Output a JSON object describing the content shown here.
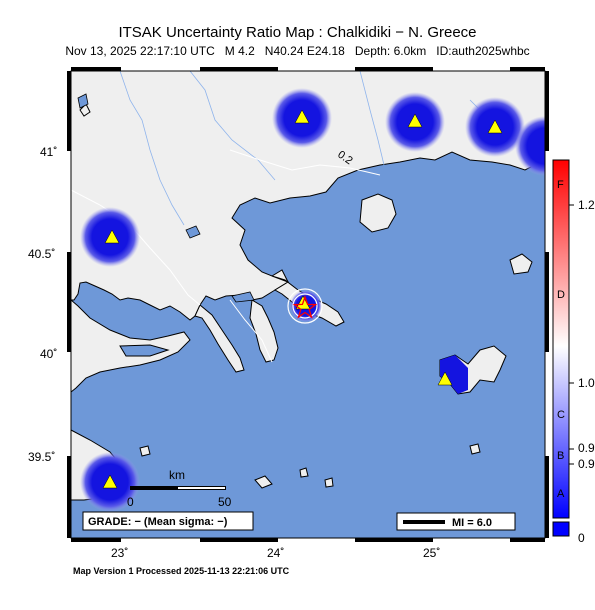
{
  "header": {
    "title": "ITSAK Uncertainty Ratio Map : Chalkidiki − N. Greece",
    "date": "Nov 13, 2025 22:17:10 UTC",
    "magnitude": "M 4.2",
    "location": "N40.24 E24.18",
    "depth": "Depth: 6.0km",
    "event_id": "ID:auth2025whbc"
  },
  "map": {
    "lon_labels": [
      "23˚",
      "24˚",
      "25˚"
    ],
    "lat_labels": [
      "41˚",
      "40.5˚",
      "40˚",
      "39.5˚"
    ],
    "contour_label": "0.2",
    "colors": {
      "sea": "#6e98d8",
      "land": "#efefef",
      "border": "#000000",
      "blob": "#1010d8",
      "station": "#ffff00",
      "epicenter": "#ff0000"
    }
  },
  "scale_bar": {
    "unit": "km",
    "start": "0",
    "end": "50"
  },
  "grade_box": "GRADE: − (Mean sigma: −)",
  "mi_legend": "MI = 6.0",
  "colorbar": {
    "letters": [
      "F",
      "D",
      "C",
      "B",
      "A"
    ],
    "values": [
      "1.2",
      "1.0",
      "0.9",
      "0.9",
      "0"
    ]
  },
  "footer": "Map Version 1 Processed 2025-11-13 22:21:06 UTC"
}
